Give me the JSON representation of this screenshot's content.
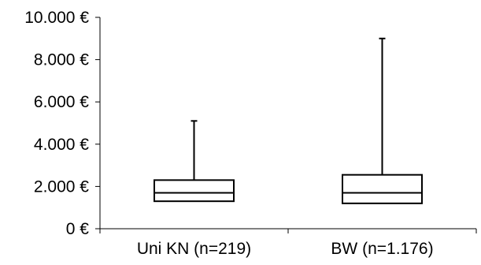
{
  "chart_data": {
    "type": "boxplot",
    "title": "",
    "xlabel": "",
    "ylabel": "",
    "ylim": [
      0,
      10000
    ],
    "y_ticks": [
      {
        "value": 0,
        "label": "0 €"
      },
      {
        "value": 2000,
        "label": "2.000 €"
      },
      {
        "value": 4000,
        "label": "4.000 €"
      },
      {
        "value": 6000,
        "label": "6.000 €"
      },
      {
        "value": 8000,
        "label": "8.000 €"
      },
      {
        "value": 10000,
        "label": "10.000 €"
      }
    ],
    "categories": [
      "Uni KN (n=219)",
      "BW (n=1.176)"
    ],
    "boxes": [
      {
        "category": "Uni KN (n=219)",
        "min": 1300,
        "q1": 1300,
        "median": 1700,
        "q3": 2300,
        "max": 5100
      },
      {
        "category": "BW (n=1.176)",
        "min": 1200,
        "q1": 1200,
        "median": 1700,
        "q3": 2550,
        "max": 9000
      }
    ],
    "grid": false,
    "legend": "none"
  }
}
